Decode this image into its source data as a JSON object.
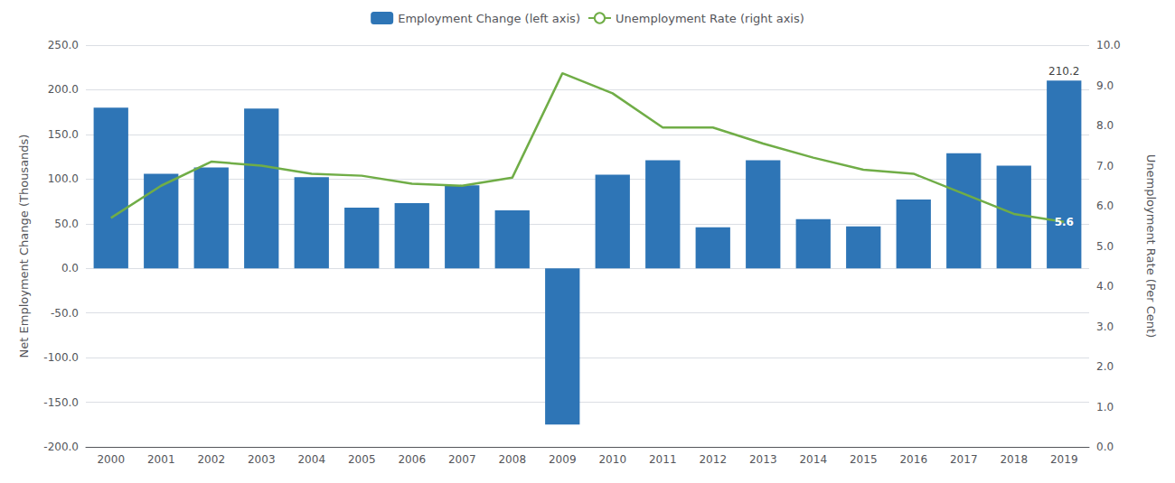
{
  "chart_data": {
    "type": "bar",
    "categories": [
      "2000",
      "2001",
      "2002",
      "2003",
      "2004",
      "2005",
      "2006",
      "2007",
      "2008",
      "2009",
      "2010",
      "2011",
      "2012",
      "2013",
      "2014",
      "2015",
      "2016",
      "2017",
      "2018",
      "2019"
    ],
    "series": [
      {
        "name": "Employment Change (left axis)",
        "type": "bar",
        "color": "#2E75B6",
        "values": [
          180,
          106,
          113,
          179,
          102,
          68,
          73,
          93,
          65,
          -175,
          105,
          121,
          46,
          121,
          55,
          47,
          77,
          129,
          115,
          210.2
        ]
      },
      {
        "name": "Unemployment Rate (right axis)",
        "type": "line",
        "color": "#70AD47",
        "axis": "y2",
        "values": [
          5.7,
          6.5,
          7.1,
          7.0,
          6.8,
          6.75,
          6.55,
          6.5,
          6.7,
          9.3,
          8.8,
          7.95,
          7.95,
          7.55,
          7.2,
          6.9,
          6.8,
          6.3,
          5.8,
          5.6
        ]
      }
    ],
    "ylabel": "Net Employment Change (Thousands)",
    "y2label": "Unemployment Rate (Per Cent)",
    "ylim": [
      -200,
      250
    ],
    "yticks": [
      {
        "value": -200,
        "label": "-200.0"
      },
      {
        "value": -150,
        "label": "-150.0"
      },
      {
        "value": -100,
        "label": "-100.0"
      },
      {
        "value": -50,
        "label": "-50.0"
      },
      {
        "value": 0,
        "label": "0.0"
      },
      {
        "value": 50,
        "label": "50.0"
      },
      {
        "value": 100,
        "label": "100.0"
      },
      {
        "value": 150,
        "label": "150.0"
      },
      {
        "value": 200,
        "label": "200.0"
      },
      {
        "value": 250,
        "label": "250.0"
      }
    ],
    "y2lim": [
      0.0,
      10.0
    ],
    "y2ticks": [
      {
        "value": 0.0,
        "label": "0.0"
      },
      {
        "value": 1.0,
        "label": "1.0"
      },
      {
        "value": 2.0,
        "label": "2.0"
      },
      {
        "value": 3.0,
        "label": "3.0"
      },
      {
        "value": 4.0,
        "label": "4.0"
      },
      {
        "value": 5.0,
        "label": "5.0"
      },
      {
        "value": 6.0,
        "label": "6.0"
      },
      {
        "value": 7.0,
        "label": "7.0"
      },
      {
        "value": 8.0,
        "label": "8.0"
      },
      {
        "value": 9.0,
        "label": "9.0"
      },
      {
        "value": 10.0,
        "label": "10.0"
      }
    ],
    "grid": true,
    "legend": "top",
    "annotations": [
      {
        "text": "210.2",
        "x": "2019",
        "y": 213
      },
      {
        "text": "5.6",
        "x": "2019",
        "y": 5.6,
        "axis": "y2",
        "color": "white"
      }
    ]
  }
}
